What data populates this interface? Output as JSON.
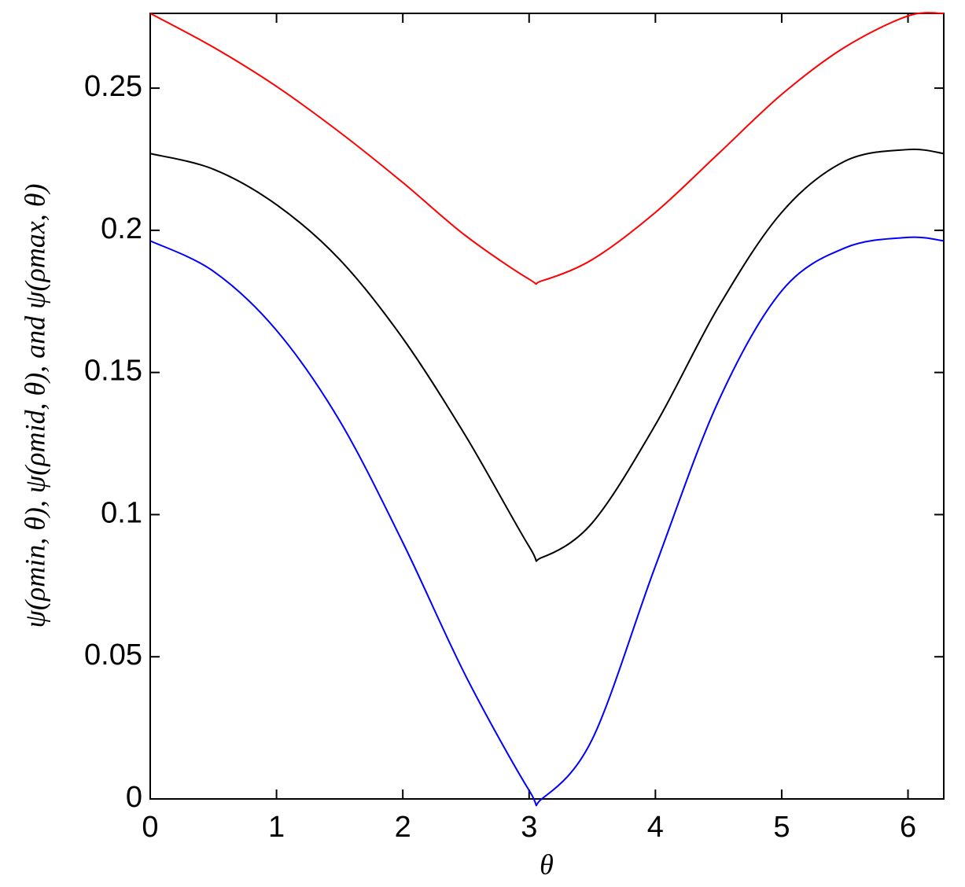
{
  "chart_data": {
    "type": "line",
    "xlabel": "θ",
    "ylabel": "ψ(ρmin, θ), ψ(ρmid, θ), and ψ(ρmax, θ)",
    "x": [
      0,
      0.5,
      1,
      1.5,
      2,
      2.5,
      3,
      3.1,
      3.5,
      4,
      4.5,
      5,
      5.5,
      6,
      6.2832
    ],
    "series": [
      {
        "color": "#ff0000",
        "values": [
          0.2763,
          0.2644,
          0.2506,
          0.2345,
          0.2168,
          0.198,
          0.1828,
          0.1822,
          0.1897,
          0.2063,
          0.227,
          0.2478,
          0.2644,
          0.2754,
          0.2763
        ]
      },
      {
        "color": "#000000",
        "values": [
          0.227,
          0.2215,
          0.209,
          0.1897,
          0.162,
          0.1275,
          0.0888,
          0.0849,
          0.0971,
          0.1316,
          0.1731,
          0.2063,
          0.2243,
          0.2284,
          0.227
        ]
      },
      {
        "color": "#0000ff",
        "values": [
          0.1963,
          0.1856,
          0.1648,
          0.133,
          0.0902,
          0.0431,
          0.003,
          0,
          0.021,
          0.0819,
          0.14,
          0.1787,
          0.1938,
          0.1975,
          0.1963
        ]
      }
    ],
    "xlim": [
      0,
      6.2832
    ],
    "ylim": [
      0,
      0.2763
    ],
    "xticks": [
      0,
      1,
      2,
      3,
      4,
      5,
      6
    ],
    "yticks": [
      0,
      0.05,
      0.1,
      0.15,
      0.2,
      0.25
    ],
    "grid": false
  }
}
